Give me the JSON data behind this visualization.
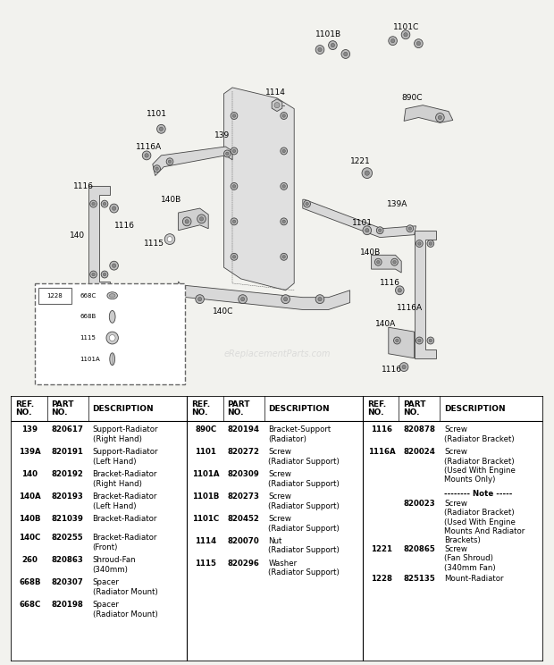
{
  "bg_color": "#f2f2ee",
  "watermark": "eReplacementParts.com",
  "col1_data": [
    [
      "139",
      "820617",
      "Support-Radiator\n(Right Hand)"
    ],
    [
      "139A",
      "820191",
      "Support-Radiator\n(Left Hand)"
    ],
    [
      "140",
      "820192",
      "Bracket-Radiator\n(Right Hand)"
    ],
    [
      "140A",
      "820193",
      "Bracket-Radiator\n(Left Hand)"
    ],
    [
      "140B",
      "821039",
      "Bracket-Radiator"
    ],
    [
      "140C",
      "820255",
      "Bracket-Radiator\n(Front)"
    ],
    [
      "260",
      "820863",
      "Shroud-Fan\n(340mm)"
    ],
    [
      "668B",
      "820307",
      "Spacer\n(Radiator Mount)"
    ],
    [
      "668C",
      "820198",
      "Spacer\n(Radiator Mount)"
    ]
  ],
  "col2_data": [
    [
      "890C",
      "820194",
      "Bracket-Support\n(Radiator)"
    ],
    [
      "1101",
      "820272",
      "Screw\n(Radiator Support)"
    ],
    [
      "1101A",
      "820309",
      "Screw\n(Radiator Support)"
    ],
    [
      "1101B",
      "820273",
      "Screw\n(Radiator Support)"
    ],
    [
      "1101C",
      "820452",
      "Screw\n(Radiator Support)"
    ],
    [
      "1114",
      "820070",
      "Nut\n(Radiator Support)"
    ],
    [
      "1115",
      "820296",
      "Washer\n(Radiator Support)"
    ]
  ],
  "col3_data": [
    [
      "1116",
      "820878",
      "Screw\n(Radiator Bracket)"
    ],
    [
      "1116A",
      "820024",
      "Screw\n(Radiator Bracket)\n(Used With Engine\nMounts Only)"
    ],
    [
      "NOTE",
      "",
      "-------- Note -----"
    ],
    [
      "",
      "820023",
      "Screw\n(Radiator Bracket)\n(Used With Engine\nMounts And Radiator\nBrackets)"
    ],
    [
      "1221",
      "820865",
      "Screw\n(Fan Shroud)\n(340mm Fan)"
    ],
    [
      "1228",
      "825135",
      "Mount-Radiator"
    ]
  ]
}
